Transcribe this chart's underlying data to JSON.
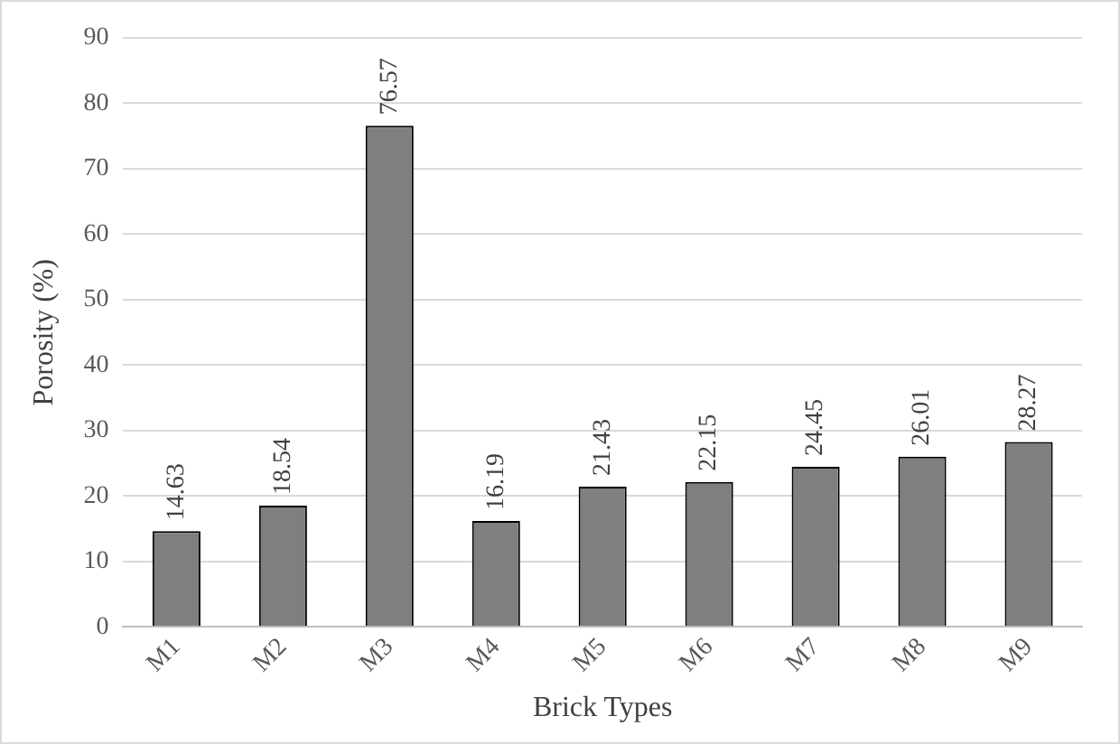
{
  "chart_data": {
    "type": "bar",
    "xlabel": "Brick Types",
    "ylabel": "Porosity (%)",
    "categories": [
      "M1",
      "M2",
      "M3",
      "M4",
      "M5",
      "M6",
      "M7",
      "M8",
      "M9"
    ],
    "values": [
      14.63,
      18.54,
      76.57,
      16.19,
      21.43,
      22.15,
      24.45,
      26.01,
      28.27
    ],
    "color": "#7f7f7f",
    "ylim": [
      0,
      90
    ],
    "yticks": [
      0,
      10,
      20,
      30,
      40,
      50,
      60,
      70,
      80,
      90
    ],
    "grid": "y",
    "data_labels": true
  }
}
